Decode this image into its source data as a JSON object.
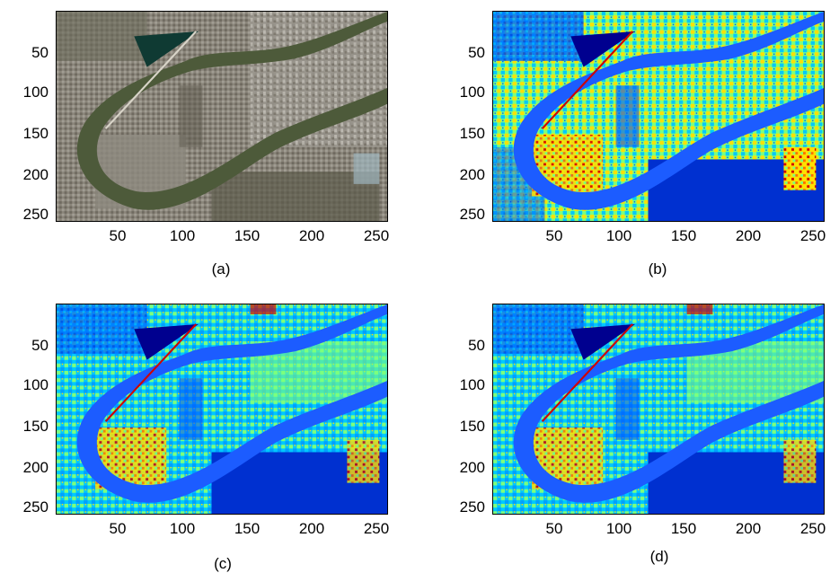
{
  "panels": [
    {
      "id": "a",
      "caption": "(a)",
      "kind": "rgb"
    },
    {
      "id": "b",
      "caption": "(b)",
      "kind": "jet"
    },
    {
      "id": "c",
      "caption": "(c)",
      "kind": "jet"
    },
    {
      "id": "d",
      "caption": "(d)",
      "kind": "jet"
    }
  ],
  "axes": {
    "y_ticks": [
      "50",
      "100",
      "150",
      "200",
      "250"
    ],
    "x_ticks": [
      "50",
      "100",
      "150",
      "200",
      "250"
    ]
  },
  "colors": {
    "rgb_background": "#7a7566",
    "river": "#4d5a3a",
    "lake": "#0f3a33",
    "jet_dark_blue": "#00008f",
    "jet_blue": "#0050ff",
    "jet_cyan": "#00c8ff",
    "jet_green": "#7dff7d",
    "jet_yellow": "#ffe000",
    "jet_red": "#d00000"
  }
}
